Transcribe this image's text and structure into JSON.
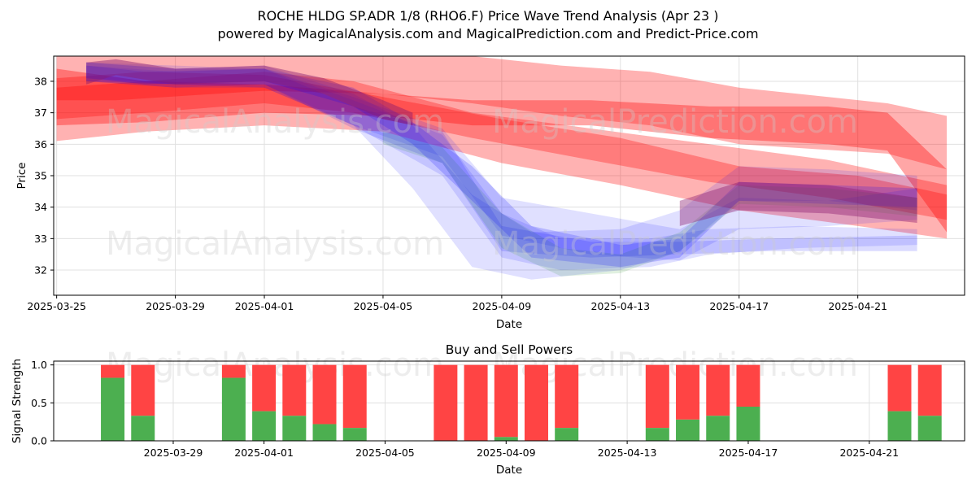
{
  "title_line1": "ROCHE HLDG SP.ADR 1/8 (RHO6.F) Price Wave Trend Analysis (Apr 23 )",
  "title_line2": "powered by MagicalAnalysis.com and MagicalPrediction.com and Predict-Price.com",
  "watermarks": [
    "MagicalAnalysis.com",
    "MagicalPrediction.com"
  ],
  "colors": {
    "red": "#ff0000",
    "blue": "#0000ff",
    "green": "#008000",
    "buy": "#4caf50",
    "sell": "#ff4444"
  },
  "chart_data": [
    {
      "type": "line",
      "title": "",
      "xlabel": "Date",
      "ylabel": "Price",
      "x_ticks": [
        "2025-03-25",
        "2025-03-29",
        "2025-04-01",
        "2025-04-05",
        "2025-04-09",
        "2025-04-13",
        "2025-04-17",
        "2025-04-21"
      ],
      "y_ticks": [
        32,
        33,
        34,
        35,
        36,
        37,
        38
      ],
      "xlim": [
        "2024-03-25",
        "2025-04-24"
      ],
      "ylim": [
        31.2,
        38.8
      ],
      "grid": true,
      "bands": [
        {
          "color": "red",
          "opacity": 0.3,
          "x": [
            "2025-03-25",
            "2025-03-27",
            "2025-04-01",
            "2025-04-05",
            "2025-04-08",
            "2025-04-11",
            "2025-04-14",
            "2025-04-17",
            "2025-04-22",
            "2025-04-24"
          ],
          "upper": [
            39.8,
            39.3,
            39.5,
            39.2,
            38.8,
            38.5,
            38.3,
            37.8,
            37.3,
            36.9
          ],
          "lower": [
            37.4,
            37.4,
            37.7,
            37.6,
            37.3,
            36.9,
            36.6,
            36.0,
            35.7,
            35.2
          ]
        },
        {
          "color": "red",
          "opacity": 0.3,
          "x": [
            "2025-03-25",
            "2025-03-28",
            "2025-04-01",
            "2025-04-05",
            "2025-04-09",
            "2025-04-13",
            "2025-04-17",
            "2025-04-21",
            "2025-04-24"
          ],
          "upper": [
            38.1,
            38.3,
            38.2,
            37.5,
            36.8,
            36.2,
            35.3,
            35.0,
            34.4
          ],
          "lower": [
            36.1,
            36.4,
            36.6,
            36.4,
            35.4,
            34.7,
            33.9,
            33.4,
            33.0
          ]
        },
        {
          "color": "red",
          "opacity": 0.35,
          "x": [
            "2025-03-25",
            "2025-03-28",
            "2025-04-01",
            "2025-04-05",
            "2025-04-08",
            "2025-04-12",
            "2025-04-16",
            "2025-04-20",
            "2025-04-22",
            "2025-04-24"
          ],
          "upper": [
            38.4,
            38.0,
            37.9,
            37.6,
            37.4,
            37.4,
            37.2,
            37.2,
            37.0,
            35.2
          ],
          "lower": [
            36.6,
            36.7,
            37.0,
            36.9,
            36.6,
            36.6,
            36.2,
            36.0,
            35.8,
            33.2
          ]
        },
        {
          "color": "red",
          "opacity": 0.3,
          "x": [
            "2025-03-25",
            "2025-03-28",
            "2025-04-01",
            "2025-04-04",
            "2025-04-08",
            "2025-04-12",
            "2025-04-16",
            "2025-04-20",
            "2025-04-24"
          ],
          "upper": [
            37.8,
            38.0,
            38.3,
            38.0,
            37.0,
            36.5,
            36.0,
            35.5,
            34.7
          ],
          "lower": [
            36.8,
            37.0,
            37.3,
            37.0,
            36.2,
            35.5,
            34.8,
            34.3,
            33.6
          ]
        },
        {
          "color": "blue",
          "opacity": 0.12,
          "x": [
            "2025-03-26",
            "2025-03-29",
            "2025-04-01",
            "2025-04-04",
            "2025-04-06",
            "2025-04-08",
            "2025-04-10",
            "2025-04-13",
            "2025-04-15",
            "2025-04-17",
            "2025-04-20",
            "2025-04-23"
          ],
          "upper": [
            38.6,
            38.4,
            38.5,
            37.6,
            36.6,
            34.4,
            33.2,
            33.3,
            33.9,
            35.3,
            35.2,
            35.0
          ],
          "lower": [
            38.0,
            37.8,
            37.8,
            36.6,
            34.6,
            32.1,
            31.7,
            32.0,
            32.6,
            34.2,
            34.2,
            33.9
          ]
        },
        {
          "color": "blue",
          "opacity": 0.12,
          "x": [
            "2025-03-26",
            "2025-03-29",
            "2025-04-01",
            "2025-04-04",
            "2025-04-07",
            "2025-04-09",
            "2025-04-11",
            "2025-04-14",
            "2025-04-16",
            "2025-04-19",
            "2025-04-23"
          ],
          "upper": [
            38.5,
            38.3,
            38.4,
            37.4,
            36.3,
            33.8,
            33.0,
            33.0,
            33.3,
            33.4,
            33.3
          ],
          "lower": [
            38.0,
            37.8,
            37.9,
            36.6,
            35.0,
            32.4,
            32.0,
            32.1,
            32.5,
            32.7,
            32.8
          ]
        },
        {
          "color": "blue",
          "opacity": 0.14,
          "x": [
            "2025-03-26",
            "2025-03-29",
            "2025-04-01",
            "2025-04-04",
            "2025-04-07",
            "2025-04-09",
            "2025-04-12",
            "2025-04-15",
            "2025-04-18",
            "2025-04-23"
          ],
          "upper": [
            38.6,
            38.4,
            38.4,
            37.2,
            36.4,
            33.4,
            32.9,
            32.9,
            33.0,
            33.1
          ],
          "lower": [
            38.0,
            37.9,
            37.9,
            36.5,
            35.4,
            32.6,
            32.4,
            32.5,
            32.6,
            32.6
          ]
        },
        {
          "color": "blue",
          "opacity": 0.12,
          "x": [
            "2025-03-26",
            "2025-03-29",
            "2025-04-01",
            "2025-04-04",
            "2025-04-07",
            "2025-04-09",
            "2025-04-12",
            "2025-04-15",
            "2025-04-17",
            "2025-04-20",
            "2025-04-23"
          ],
          "upper": [
            38.6,
            38.5,
            38.4,
            37.5,
            36.5,
            34.3,
            33.8,
            33.3,
            34.3,
            34.2,
            34.6
          ],
          "lower": [
            38.1,
            37.9,
            37.8,
            36.6,
            35.6,
            33.1,
            32.5,
            32.3,
            33.3,
            33.4,
            33.6
          ]
        },
        {
          "color": "green",
          "opacity": 0.12,
          "x": [
            "2025-04-05",
            "2025-04-07",
            "2025-04-09",
            "2025-04-11",
            "2025-04-13",
            "2025-04-15",
            "2025-04-17",
            "2025-04-20",
            "2025-04-23"
          ],
          "upper": [
            36.4,
            35.9,
            33.8,
            32.7,
            32.5,
            33.2,
            34.7,
            34.6,
            34.3
          ],
          "lower": [
            36.0,
            35.4,
            32.7,
            31.8,
            31.9,
            32.6,
            34.1,
            34.0,
            33.7
          ]
        },
        {
          "color": "blue",
          "opacity": 0.18,
          "x": [
            "2025-03-26",
            "2025-03-28",
            "2025-04-01",
            "2025-04-04",
            "2025-04-06",
            "2025-04-08",
            "2025-04-10",
            "2025-04-13",
            "2025-04-15",
            "2025-04-17",
            "2025-04-23"
          ],
          "upper": [
            38.5,
            38.3,
            38.4,
            37.8,
            36.7,
            35.3,
            33.4,
            32.8,
            33.0,
            34.8,
            34.6
          ],
          "lower": [
            38.1,
            37.9,
            38.0,
            37.2,
            36.0,
            34.2,
            32.4,
            32.1,
            32.4,
            34.2,
            34.0
          ]
        },
        {
          "color": "purple",
          "opacity": 0.45,
          "x": [
            "2025-03-26",
            "2025-03-27",
            "2025-03-29",
            "2025-04-01",
            "2025-04-03",
            "2025-04-05",
            "2025-04-06"
          ],
          "upper": [
            38.6,
            38.7,
            38.4,
            38.5,
            38.1,
            37.4,
            37.0
          ],
          "lower": [
            37.9,
            38.2,
            37.9,
            38.0,
            37.6,
            36.8,
            36.6
          ]
        },
        {
          "color": "purple",
          "opacity": 0.4,
          "x": [
            "2025-04-15",
            "2025-04-17",
            "2025-04-20",
            "2025-04-23"
          ],
          "upper": [
            34.2,
            34.8,
            34.7,
            34.3
          ],
          "lower": [
            33.4,
            33.9,
            33.8,
            33.5
          ]
        }
      ]
    },
    {
      "type": "bar",
      "title": "Buy and Sell Powers",
      "xlabel": "Date",
      "ylabel": "Signal Strength",
      "x_ticks": [
        "2025-03-29",
        "2025-04-01",
        "2025-04-05",
        "2025-04-09",
        "2025-04-13",
        "2025-04-17",
        "2025-04-21"
      ],
      "y_ticks": [
        "0.0",
        "0.5",
        "1.0"
      ],
      "xlim": [
        "2025-03-25",
        "2025-04-24"
      ],
      "ylim": [
        0,
        1.05
      ],
      "dates": [
        "2025-03-27",
        "2025-03-28",
        "2025-03-31",
        "2025-04-01",
        "2025-04-02",
        "2025-04-03",
        "2025-04-04",
        "2025-04-07",
        "2025-04-08",
        "2025-04-09",
        "2025-04-10",
        "2025-04-11",
        "2025-04-14",
        "2025-04-15",
        "2025-04-16",
        "2025-04-17",
        "2025-04-22",
        "2025-04-23"
      ],
      "buy": [
        0.83,
        0.33,
        0.83,
        0.39,
        0.33,
        0.22,
        0.17,
        0.0,
        0.0,
        0.05,
        0.0,
        0.17,
        0.17,
        0.28,
        0.33,
        0.45,
        0.39,
        0.33
      ],
      "sell_top": 1.0
    }
  ]
}
